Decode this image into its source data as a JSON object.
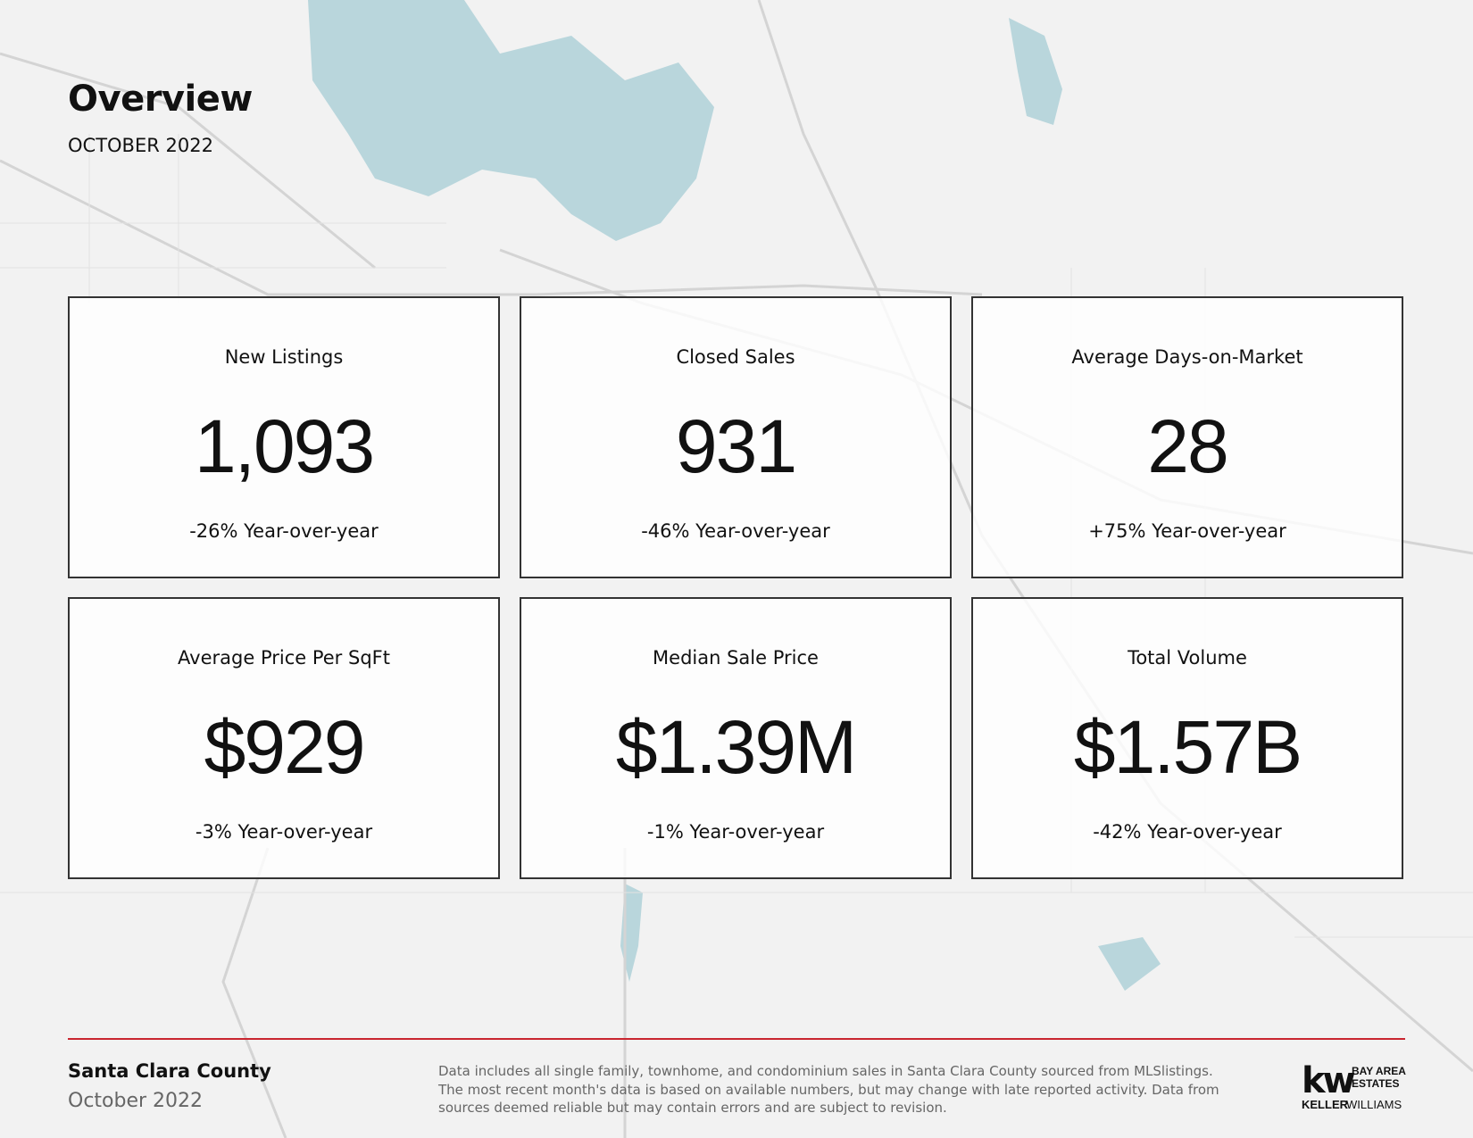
{
  "header": {
    "title": "Overview",
    "subtitle": "OCTOBER 2022"
  },
  "cards": [
    {
      "label": "New Listings",
      "value": "1,093",
      "change": "-26% Year-over-year"
    },
    {
      "label": "Closed Sales",
      "value": "931",
      "change": "-46% Year-over-year"
    },
    {
      "label": "Average Days-on-Market",
      "value": "28",
      "change": "+75% Year-over-year"
    },
    {
      "label": "Average Price Per SqFt",
      "value": "$929",
      "change": "-3% Year-over-year"
    },
    {
      "label": "Median Sale Price",
      "value": "$1.39M",
      "change": "-1% Year-over-year"
    },
    {
      "label": "Total Volume",
      "value": "$1.57B",
      "change": "-42% Year-over-year"
    }
  ],
  "footer": {
    "region": "Santa Clara County",
    "date": "October 2022",
    "disclaimer": [
      "Data includes all single family, townhome, and condominium sales in Santa Clara County sourced from MLSlistings.",
      "The most recent month's data is based on available numbers, but may change with late reported activity. Data from",
      "sources deemed reliable but may contain errors and are subject to revision."
    ],
    "logo": {
      "mark": "kw",
      "line1": "BAY AREA",
      "line2": "ESTATES",
      "brand1": "KELLER",
      "brand2": "WILLIAMS"
    }
  }
}
